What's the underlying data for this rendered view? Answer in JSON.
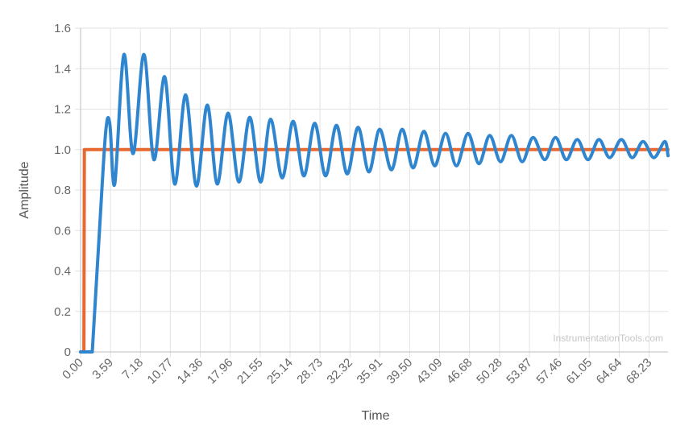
{
  "chart_data": {
    "type": "line",
    "title": "",
    "xlabel": "Time",
    "ylabel": "Amplitude",
    "watermark": "InstrumentationTools.com",
    "xlim": [
      0,
      70.5
    ],
    "ylim": [
      0,
      1.6
    ],
    "x_tick_labels": [
      "0.00",
      "3.59",
      "7.18",
      "10.77",
      "14.36",
      "17.96",
      "21.55",
      "25.14",
      "28.73",
      "32.32",
      "35.91",
      "39.50",
      "43.09",
      "46.68",
      "50.28",
      "53.87",
      "57.46",
      "61.05",
      "64.64",
      "68.23"
    ],
    "y_tick_labels": [
      "0",
      "0.2",
      "0.4",
      "0.6",
      "0.8",
      "1.0",
      "1.2",
      "1.4",
      "1.6"
    ],
    "grid": true,
    "legend": "none",
    "series": [
      {
        "color": "#e8692f",
        "x": [
          0,
          0.4,
          0.45,
          70.5
        ],
        "y": [
          0,
          0,
          1.0,
          1.0
        ]
      },
      {
        "color": "#2f86cf",
        "x": [
          0,
          1.4,
          2.2,
          3.0,
          3.5,
          4.1,
          5.2,
          6.3,
          7.6,
          8.8,
          10.1,
          11.3,
          12.6,
          13.9,
          15.2,
          16.4,
          17.7,
          19.0,
          20.3,
          21.6,
          22.8,
          24.2,
          25.5,
          26.8,
          28.1,
          29.4,
          30.7,
          32.0,
          33.3,
          34.6,
          35.9,
          37.3,
          38.6,
          39.9,
          41.2,
          42.5,
          43.8,
          45.1,
          46.5,
          47.8,
          49.1,
          50.4,
          51.7,
          53.0,
          54.3,
          55.7,
          57.0,
          58.3,
          59.6,
          60.9,
          62.2,
          63.5,
          64.9,
          66.2,
          67.5,
          68.8,
          70.1,
          70.5
        ],
        "y": [
          0,
          0,
          0.55,
          1.08,
          1.13,
          0.83,
          1.47,
          0.98,
          1.47,
          0.95,
          1.36,
          0.83,
          1.27,
          0.82,
          1.22,
          0.83,
          1.18,
          0.84,
          1.16,
          0.84,
          1.15,
          0.86,
          1.14,
          0.87,
          1.13,
          0.87,
          1.12,
          0.88,
          1.11,
          0.89,
          1.1,
          0.9,
          1.1,
          0.91,
          1.09,
          0.92,
          1.08,
          0.92,
          1.08,
          0.93,
          1.07,
          0.94,
          1.07,
          0.94,
          1.06,
          0.95,
          1.06,
          0.95,
          1.05,
          0.95,
          1.05,
          0.96,
          1.05,
          0.96,
          1.04,
          0.96,
          1.04,
          0.97
        ]
      }
    ]
  }
}
